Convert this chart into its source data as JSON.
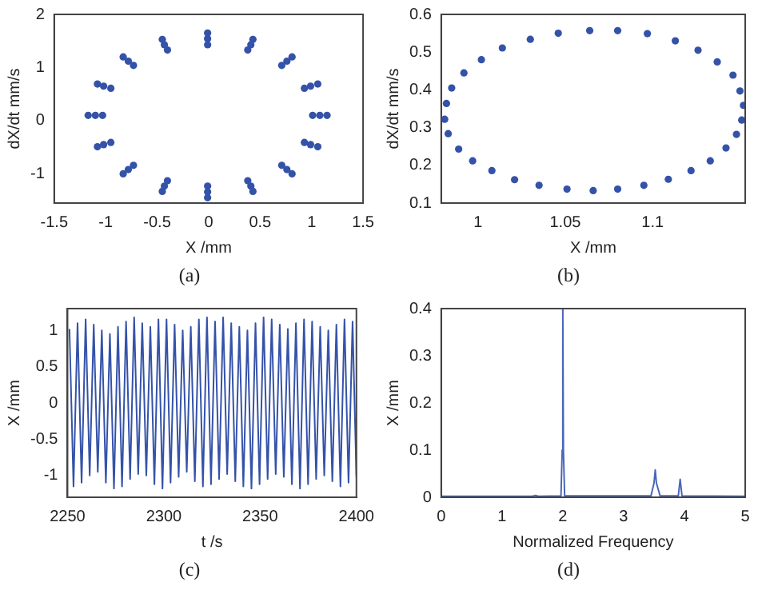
{
  "chart_data": [
    {
      "type": "scatter",
      "marker": "circle",
      "xlabel": "X /mm",
      "ylabel": "dX/dt mm/s",
      "annotations": [
        "(a)"
      ],
      "xlim": [
        -1.5,
        1.5
      ],
      "ylim": [
        -1.55,
        2
      ],
      "xticks": [
        -1.5,
        -1,
        -0.5,
        0,
        0.5,
        1,
        1.5
      ],
      "yticks": [
        -1,
        0,
        1,
        2
      ],
      "grid": false,
      "series": [
        {
          "color": "#3452a8",
          "x": [
            -1.17,
            -1.08,
            -0.83,
            -0.45,
            -0.01,
            0.43,
            0.81,
            1.06,
            1.15,
            1.06,
            0.81,
            0.43,
            -0.01,
            -0.45,
            -0.83,
            -1.08,
            -1.1,
            -1.02,
            -0.78,
            -0.43,
            -0.01,
            0.41,
            0.76,
            0.99,
            1.08,
            0.99,
            0.76,
            0.41,
            -0.01,
            -0.43,
            -0.78,
            -1.02,
            -1.03,
            -0.95,
            -0.73,
            -0.4,
            -0.01,
            0.38,
            0.71,
            0.93,
            1.01,
            0.93,
            0.71,
            0.38,
            -0.01,
            -0.4,
            -0.73,
            -0.95
          ],
          "values": [
            0.1,
            0.69,
            1.2,
            1.53,
            1.65,
            1.53,
            1.2,
            0.69,
            0.1,
            -0.49,
            -1.0,
            -1.33,
            -1.45,
            -1.33,
            -1.0,
            -0.49,
            0.1,
            0.65,
            1.12,
            1.43,
            1.54,
            1.43,
            1.12,
            0.65,
            0.1,
            -0.45,
            -0.92,
            -1.23,
            -1.34,
            -1.23,
            -0.92,
            -0.45,
            0.1,
            0.61,
            1.04,
            1.33,
            1.43,
            1.33,
            1.04,
            0.61,
            0.1,
            -0.41,
            -0.84,
            -1.13,
            -1.23,
            -1.13,
            -0.84,
            -0.41
          ]
        }
      ]
    },
    {
      "type": "scatter",
      "marker": "circle",
      "xlabel": "X /mm",
      "ylabel": "dX/dt mm/s",
      "annotations": [
        "(b)"
      ],
      "xlim": [
        0.979,
        1.153
      ],
      "ylim": [
        0.1,
        0.6
      ],
      "xticks": [
        1,
        1.05,
        1.1
      ],
      "yticks": [
        0.1,
        0.2,
        0.3,
        0.4,
        0.5,
        0.6
      ],
      "grid": false,
      "series": [
        {
          "color": "#3452a8",
          "x": [
            0.982,
            0.981,
            0.983,
            0.985,
            0.989,
            0.992,
            0.997,
            1.002,
            1.008,
            1.014,
            1.021,
            1.03,
            1.035,
            1.046,
            1.051,
            1.064,
            1.066,
            1.08,
            1.08,
            1.097,
            1.095,
            1.113,
            1.109,
            1.126,
            1.122,
            1.137,
            1.133,
            1.146,
            1.142,
            1.15,
            1.148,
            1.152,
            1.151
          ],
          "values": [
            0.364,
            0.322,
            0.284,
            0.405,
            0.243,
            0.445,
            0.212,
            0.48,
            0.186,
            0.511,
            0.162,
            0.534,
            0.147,
            0.55,
            0.137,
            0.557,
            0.133,
            0.557,
            0.137,
            0.549,
            0.147,
            0.53,
            0.163,
            0.505,
            0.186,
            0.474,
            0.212,
            0.439,
            0.246,
            0.397,
            0.282,
            0.359,
            0.32
          ]
        }
      ]
    },
    {
      "type": "line",
      "xlabel": "t /s",
      "ylabel": "X /mm",
      "annotations": [
        "(c)"
      ],
      "xlim": [
        2250,
        2400
      ],
      "ylim": [
        -1.3,
        1.3
      ],
      "xticks": [
        2250,
        2300,
        2350,
        2400
      ],
      "yticks": [
        -1,
        -0.5,
        0,
        0.5,
        1
      ],
      "grid": false,
      "series": [
        {
          "color": "#3452a8",
          "x": [
            2251,
            2253.1,
            2255.2,
            2257.3,
            2259.4,
            2261.5,
            2263.6,
            2265.7,
            2267.8,
            2269.9,
            2272,
            2274.1,
            2276.2,
            2278.3,
            2280.4,
            2282.5,
            2284.6,
            2286.7,
            2288.8,
            2290.9,
            2293,
            2295.1,
            2297.2,
            2299.3,
            2301.4,
            2303.5,
            2305.6,
            2307.7,
            2309.8,
            2311.9,
            2314,
            2316.1,
            2318.2,
            2320.3,
            2322.4,
            2324.5,
            2326.6,
            2328.7,
            2330.8,
            2332.9,
            2335,
            2337.1,
            2339.2,
            2341.3,
            2343.4,
            2345.5,
            2347.6,
            2349.7,
            2351.8,
            2353.9,
            2356,
            2358.1,
            2360.2,
            2362.3,
            2364.4,
            2366.5,
            2368.6,
            2370.7,
            2372.8,
            2374.9,
            2377,
            2379.1,
            2381.2,
            2383.3,
            2385.4,
            2387.5,
            2389.6,
            2391.7,
            2393.8,
            2395.9,
            2398,
            2400
          ],
          "values": [
            1.02,
            -1.15,
            1.1,
            -1.1,
            1.15,
            -1.0,
            1.08,
            -0.95,
            1.0,
            -1.1,
            0.95,
            -1.18,
            1.05,
            -1.15,
            1.12,
            -1.05,
            1.18,
            -0.98,
            1.1,
            -1.0,
            1.05,
            -1.12,
            1.15,
            -1.18,
            1.15,
            -1.1,
            1.08,
            -1.02,
            1.0,
            -0.95,
            1.05,
            -1.08,
            1.15,
            -1.15,
            1.18,
            -1.12,
            1.12,
            -1.05,
            1.18,
            -0.98,
            1.1,
            -1.08,
            1.05,
            -1.15,
            1.0,
            -1.18,
            1.1,
            -1.12,
            1.18,
            -1.05,
            1.15,
            -0.98,
            1.08,
            -1.02,
            1.02,
            -1.12,
            1.1,
            -1.18,
            1.15,
            -1.12,
            1.12,
            -1.05,
            1.05,
            -1.0,
            1.0,
            -1.08,
            1.08,
            -1.15,
            1.15,
            -1.1,
            1.12,
            -1.02
          ]
        }
      ]
    },
    {
      "type": "line",
      "xlabel": "Normalized Frequency",
      "ylabel": "X /mm",
      "annotations": [
        "(d)"
      ],
      "xlim": [
        0,
        5
      ],
      "ylim": [
        0,
        0.4
      ],
      "xticks": [
        0,
        1,
        2,
        3,
        4,
        5
      ],
      "yticks": [
        0,
        0.1,
        0.2,
        0.3,
        0.4
      ],
      "grid": false,
      "series": [
        {
          "color": "#4a66b8",
          "x": [
            0,
            1.5,
            1.55,
            1.6,
            1.97,
            1.99,
            2,
            2.01,
            2.03,
            3.45,
            3.5,
            3.52,
            3.54,
            3.6,
            3.9,
            3.93,
            3.96,
            5
          ],
          "values": [
            0.002,
            0.002,
            0.004,
            0.002,
            0.003,
            0.1,
            0.4,
            0.1,
            0.003,
            0.003,
            0.03,
            0.058,
            0.03,
            0.003,
            0.003,
            0.038,
            0.003,
            0.002
          ]
        }
      ]
    }
  ]
}
